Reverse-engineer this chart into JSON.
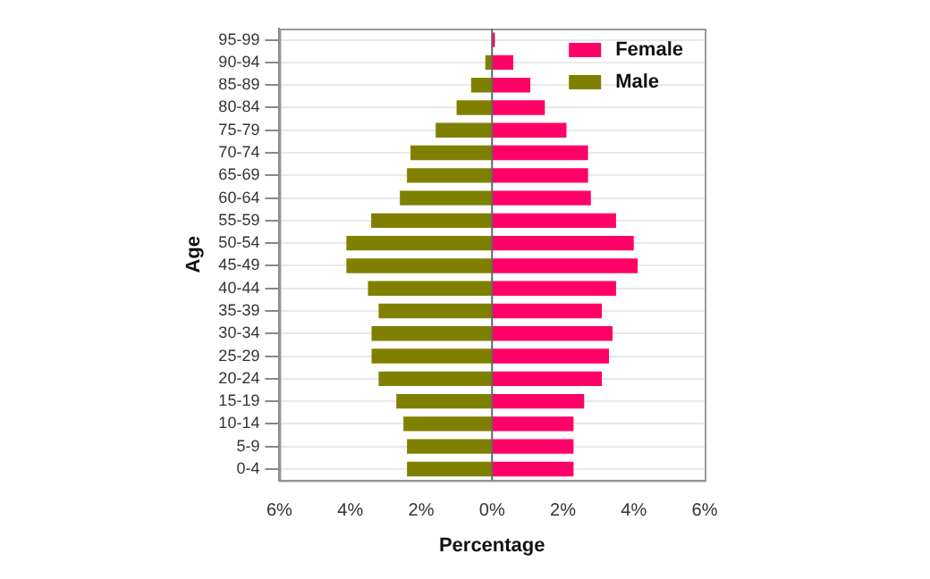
{
  "chart_data": {
    "type": "bar",
    "orientation": "horizontal",
    "stacked": true,
    "xlabel": "Percentage",
    "ylabel": "Age",
    "categories": [
      "95-99",
      "90-94",
      "85-89",
      "80-84",
      "75-79",
      "70-74",
      "65-69",
      "60-64",
      "55-59",
      "50-54",
      "45-49",
      "40-44",
      "35-39",
      "30-34",
      "25-29",
      "20-24",
      "15-19",
      "10-14",
      "5-9",
      "0-4"
    ],
    "series": [
      {
        "name": "Female",
        "color": "#ff0066",
        "values": [
          0.08,
          0.6,
          1.08,
          1.49,
          2.1,
          2.71,
          2.71,
          2.79,
          3.5,
          4.0,
          4.11,
          3.5,
          3.1,
          3.4,
          3.3,
          3.1,
          2.6,
          2.3,
          2.3,
          2.3
        ]
      },
      {
        "name": "Male",
        "color": "#808000",
        "values": [
          null,
          -0.19,
          -0.59,
          -1.0,
          -1.59,
          -2.3,
          -2.4,
          -2.6,
          -3.41,
          -4.11,
          -4.11,
          -3.5,
          -3.2,
          -3.4,
          -3.4,
          -3.2,
          -2.7,
          -2.5,
          -2.4,
          -2.4
        ]
      }
    ],
    "xlim": [
      -6,
      6
    ],
    "xticks": [
      {
        "value": -6,
        "label": "6%"
      },
      {
        "value": -4,
        "label": "4%"
      },
      {
        "value": -2,
        "label": "2%"
      },
      {
        "value": 0,
        "label": "0%"
      },
      {
        "value": 2,
        "label": "2%"
      },
      {
        "value": 4,
        "label": "4%"
      },
      {
        "value": 6,
        "label": "6%"
      }
    ],
    "ref_lines": [
      {
        "axis": "x",
        "value": 0,
        "color": "#666666"
      }
    ],
    "grid": "y",
    "legend": "top right"
  }
}
